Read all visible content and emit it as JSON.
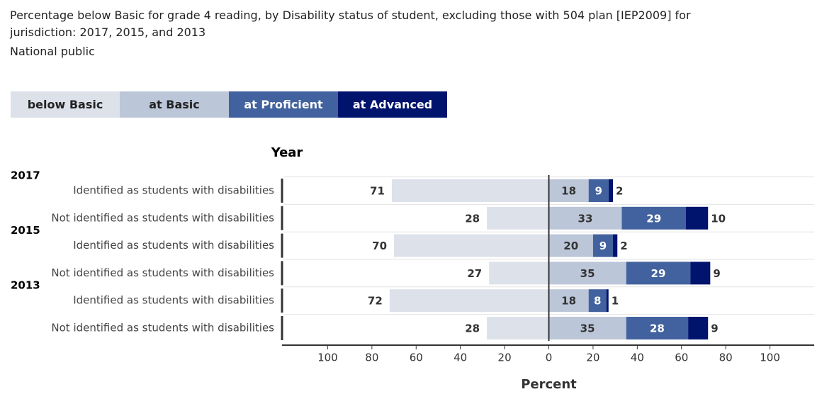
{
  "chart_data": {
    "type": "diverging-bar",
    "title": "Percentage below Basic for grade 4 reading, by Disability status of student, excluding those with 504 plan [IEP2009] for jurisdiction: 2017, 2015, and 2013",
    "subtitle": "National public",
    "group_label": "Year",
    "x_label": "Percent",
    "years": [
      "2017",
      "2015",
      "2013"
    ],
    "categories": [
      "Identified as students with disabilities",
      "Not identified as students with disabilities",
      "Identified as students with disabilities",
      "Not identified as students with disabilities",
      "Identified as students with disabilities",
      "Not identified as students with disabilities"
    ],
    "series": [
      {
        "name": "below Basic",
        "color": "#dde1ea",
        "direction": "left",
        "values": [
          71,
          28,
          70,
          27,
          72,
          28
        ]
      },
      {
        "name": "at Basic",
        "color": "#bcc6d9",
        "direction": "right",
        "values": [
          18,
          33,
          20,
          35,
          18,
          35
        ]
      },
      {
        "name": "at Proficient",
        "color": "#41629e",
        "direction": "right",
        "values": [
          9,
          29,
          9,
          29,
          8,
          28
        ]
      },
      {
        "name": "at Advanced",
        "color": "#00146e",
        "direction": "right",
        "values": [
          2,
          10,
          2,
          9,
          1,
          9
        ]
      }
    ],
    "xlim": [
      -120,
      120
    ],
    "xticks": [
      {
        "value": -100,
        "label": "100"
      },
      {
        "value": -80,
        "label": "80"
      },
      {
        "value": -60,
        "label": "60"
      },
      {
        "value": -40,
        "label": "40"
      },
      {
        "value": -20,
        "label": "20"
      },
      0,
      20,
      40,
      60,
      80,
      100
    ]
  }
}
